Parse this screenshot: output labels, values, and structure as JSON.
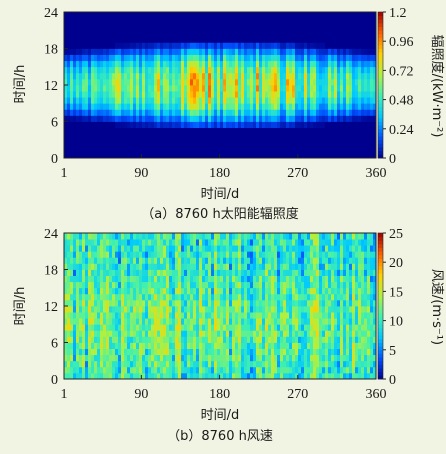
{
  "chart_data": [
    {
      "type": "heatmap",
      "caption": "（a）8760 h太阳能辐照度",
      "xlabel": "时间/d",
      "ylabel": "时间/h",
      "x_ticks": [
        "1",
        "90",
        "180",
        "270",
        "360"
      ],
      "x_tick_values": [
        1,
        90,
        180,
        270,
        360
      ],
      "y_ticks": [
        "0",
        "6",
        "12",
        "18",
        "24"
      ],
      "y_tick_values": [
        0,
        6,
        12,
        18,
        24
      ],
      "xlim": [
        1,
        360
      ],
      "ylim": [
        0,
        24
      ],
      "colorbar": {
        "label": "辐照度/(kW·m⁻²)",
        "ticks": [
          "0",
          "0.24",
          "0.48",
          "0.72",
          "0.96",
          "1.2"
        ],
        "tick_values": [
          0,
          0.24,
          0.48,
          0.72,
          0.96,
          1.2
        ],
        "range": [
          0,
          1.2
        ]
      },
      "pattern": {
        "daylight_hours_min": [
          7,
          17
        ],
        "daylight_hours_max": [
          5,
          19
        ],
        "peak_hour": 12,
        "peak_value_summer": 1.0,
        "peak_value_winter": 0.6
      }
    },
    {
      "type": "heatmap",
      "caption": "（b）8760 h风速",
      "xlabel": "时间/d",
      "ylabel": "时间/h",
      "x_ticks": [
        "1",
        "90",
        "180",
        "270",
        "360"
      ],
      "x_tick_values": [
        1,
        90,
        180,
        270,
        360
      ],
      "y_ticks": [
        "0",
        "6",
        "12",
        "18",
        "24"
      ],
      "y_tick_values": [
        0,
        6,
        12,
        18,
        24
      ],
      "xlim": [
        1,
        360
      ],
      "ylim": [
        0,
        24
      ],
      "colorbar": {
        "label": "风速/(m·s⁻¹)",
        "ticks": [
          "0",
          "5",
          "10",
          "15",
          "20",
          "25"
        ],
        "tick_values": [
          0,
          5,
          10,
          15,
          20,
          25
        ],
        "range": [
          0,
          25
        ]
      },
      "pattern": {
        "typical_range": [
          5,
          16
        ],
        "mean": 10
      }
    }
  ],
  "colormap": [
    "#00008f",
    "#0050ff",
    "#00c8ff",
    "#40f0b0",
    "#b0f040",
    "#ffd000",
    "#ff6000",
    "#a00000"
  ]
}
